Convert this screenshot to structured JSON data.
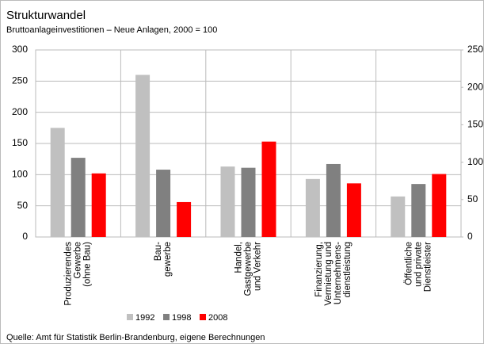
{
  "chart_data": {
    "type": "bar",
    "title": "Strukturwandel",
    "subtitle": "Bruttoanlageinvestitionen  – Neue Anlagen,  2000 = 100",
    "categories": [
      [
        "Produzierendes",
        "Gewerbe",
        "(ohne Bau)"
      ],
      [
        "Bau-",
        "gewerbe"
      ],
      [
        "Handel,",
        "Gastgewerbe",
        "und Verkehr"
      ],
      [
        "Finanzierung,",
        "Vermietung und",
        "Unternehmens-",
        "dienstleistung"
      ],
      [
        "Öffentliche",
        "und private",
        "Dienstleister"
      ]
    ],
    "series": [
      {
        "name": "1992",
        "color": "#c0c0c0",
        "values": [
          175,
          260,
          113,
          93,
          65
        ]
      },
      {
        "name": "1998",
        "color": "#808080",
        "values": [
          127,
          108,
          111,
          117,
          85
        ]
      },
      {
        "name": "2008",
        "color": "#ff0000",
        "values": [
          102,
          56,
          153,
          86,
          101
        ]
      }
    ],
    "ylim": [
      0,
      300
    ],
    "yticks": [
      0,
      50,
      100,
      150,
      200,
      250,
      300
    ],
    "y2lim": [
      0,
      250
    ],
    "y2ticks": [
      0,
      50,
      100,
      150,
      200,
      250
    ],
    "grid": true,
    "legend": "bottom",
    "source": "Quelle: Amt für Statistik Berlin-Brandenburg,  eigene Berechnungen"
  }
}
